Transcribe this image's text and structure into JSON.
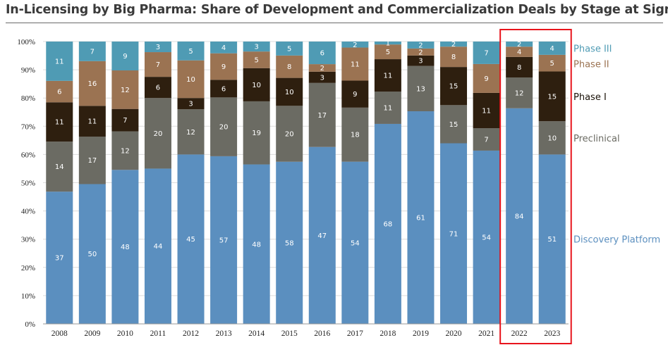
{
  "title": "In-Licensing by Big Pharma: Share of Development and Commercialization Deals by Stage at Signing",
  "colors": {
    "discovery": "#5b8fbf",
    "preclinical": "#6b6b63",
    "phase1": "#2e1f0f",
    "phase2": "#9b7352",
    "phase3": "#4f9bb4",
    "highlight_box": "#e8141c"
  },
  "chart_data": {
    "type": "bar",
    "stacked": true,
    "normalized": true,
    "categories": [
      "2008",
      "2009",
      "2010",
      "2011",
      "2012",
      "2013",
      "2014",
      "2015",
      "2016",
      "2017",
      "2018",
      "2019",
      "2020",
      "2021",
      "2022",
      "2023"
    ],
    "y_ticks": [
      "0%",
      "10%",
      "20%",
      "30%",
      "40%",
      "50%",
      "60%",
      "70%",
      "80%",
      "90%",
      "100%"
    ],
    "ylim": [
      0,
      100
    ],
    "legend_position": "right",
    "highlighted_categories": [
      "2022",
      "2023"
    ],
    "series": [
      {
        "name": "Discovery Platform",
        "color_key": "discovery",
        "label_color": "#ffffff",
        "values": [
          37,
          50,
          48,
          44,
          45,
          57,
          48,
          58,
          47,
          54,
          68,
          61,
          71,
          54,
          84,
          51
        ]
      },
      {
        "name": "Preclinical",
        "color_key": "preclinical",
        "label_color": "#ffffff",
        "values": [
          14,
          17,
          12,
          20,
          12,
          20,
          19,
          20,
          17,
          18,
          11,
          13,
          15,
          7,
          12,
          10
        ]
      },
      {
        "name": "Phase I",
        "color_key": "phase1",
        "label_color": "#ffffff",
        "values": [
          11,
          11,
          7,
          6,
          3,
          6,
          10,
          10,
          3,
          9,
          11,
          3,
          15,
          11,
          8,
          15
        ]
      },
      {
        "name": "Phase II",
        "color_key": "phase2",
        "label_color": "#ffffff",
        "values": [
          6,
          16,
          12,
          7,
          10,
          9,
          5,
          8,
          2,
          11,
          5,
          2,
          8,
          9,
          4,
          5
        ]
      },
      {
        "name": "Phase III",
        "color_key": "phase3",
        "label_color": "#ffffff",
        "values": [
          11,
          7,
          9,
          3,
          5,
          4,
          3,
          5,
          6,
          2,
          1,
          2,
          2,
          7,
          2,
          4
        ]
      }
    ]
  }
}
